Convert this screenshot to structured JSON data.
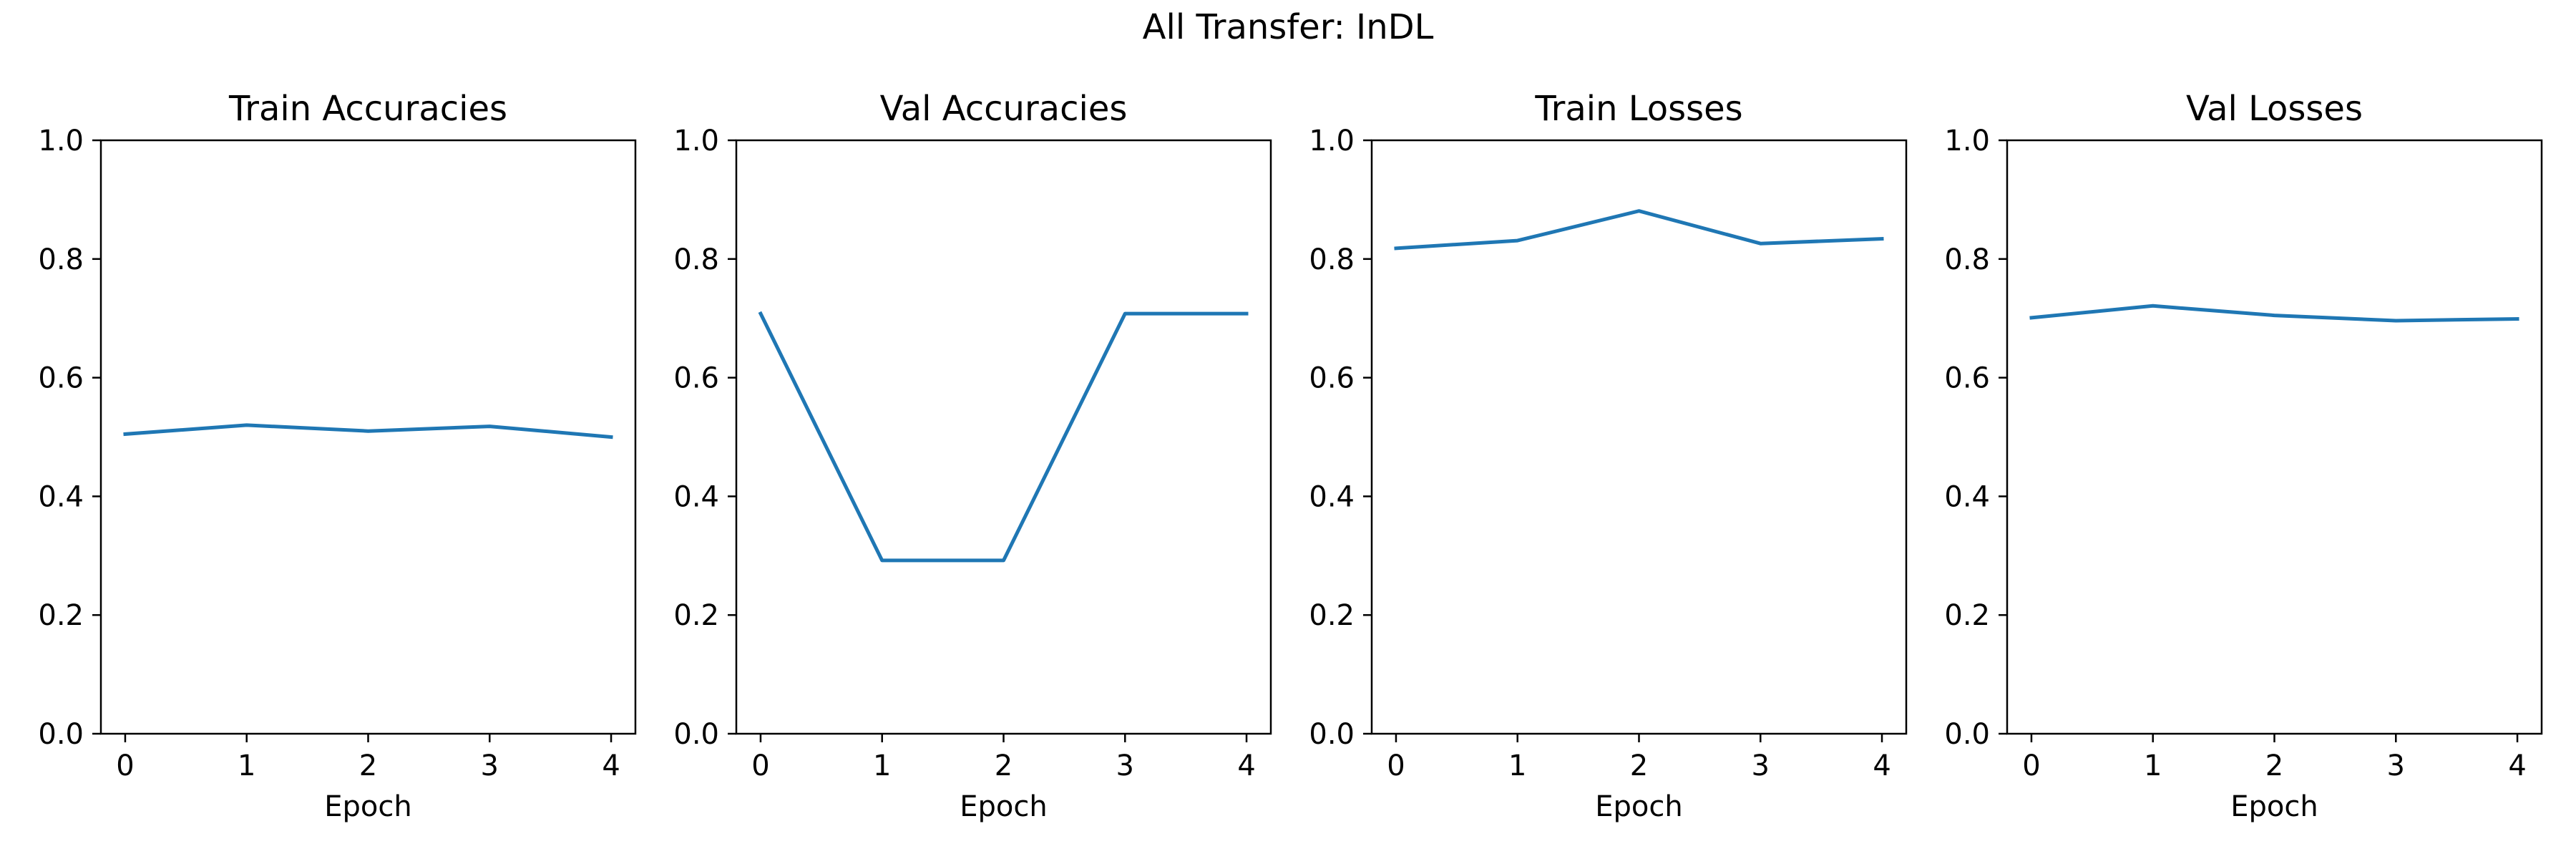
{
  "figure": {
    "suptitle": "All Transfer: InDL"
  },
  "style": {
    "line_color": "#1f77b4",
    "axis_color": "#000000",
    "background": "#ffffff"
  },
  "chart_data": [
    {
      "type": "line",
      "title": "Train Accuracies",
      "xlabel": "Epoch",
      "ylabel": "",
      "x": [
        0,
        1,
        2,
        3,
        4
      ],
      "series": [
        {
          "values": [
            0.505,
            0.52,
            0.51,
            0.518,
            0.5
          ]
        }
      ],
      "xlim": [
        -0.2,
        4.2
      ],
      "ylim": [
        0.0,
        1.0
      ],
      "xticks": [
        "0",
        "1",
        "2",
        "3",
        "4"
      ],
      "yticks": [
        "0.0",
        "0.2",
        "0.4",
        "0.6",
        "0.8",
        "1.0"
      ],
      "grid": false,
      "legend": "none"
    },
    {
      "type": "line",
      "title": "Val Accuracies",
      "xlabel": "Epoch",
      "ylabel": "",
      "x": [
        0,
        1,
        2,
        3,
        4
      ],
      "series": [
        {
          "values": [
            0.708,
            0.292,
            0.292,
            0.708,
            0.708
          ]
        }
      ],
      "xlim": [
        -0.2,
        4.2
      ],
      "ylim": [
        0.0,
        1.0
      ],
      "xticks": [
        "0",
        "1",
        "2",
        "3",
        "4"
      ],
      "yticks": [
        "0.0",
        "0.2",
        "0.4",
        "0.6",
        "0.8",
        "1.0"
      ],
      "grid": false,
      "legend": "none"
    },
    {
      "type": "line",
      "title": "Train Losses",
      "xlabel": "Epoch",
      "ylabel": "",
      "x": [
        0,
        1,
        2,
        3,
        4
      ],
      "series": [
        {
          "values": [
            0.818,
            0.831,
            0.881,
            0.826,
            0.834
          ]
        }
      ],
      "xlim": [
        -0.2,
        4.2
      ],
      "ylim": [
        0.0,
        1.0
      ],
      "xticks": [
        "0",
        "1",
        "2",
        "3",
        "4"
      ],
      "yticks": [
        "0.0",
        "0.2",
        "0.4",
        "0.6",
        "0.8",
        "1.0"
      ],
      "grid": false,
      "legend": "none"
    },
    {
      "type": "line",
      "title": "Val Losses",
      "xlabel": "Epoch",
      "ylabel": "",
      "x": [
        0,
        1,
        2,
        3,
        4
      ],
      "series": [
        {
          "values": [
            0.701,
            0.721,
            0.705,
            0.696,
            0.699
          ]
        }
      ],
      "xlim": [
        -0.2,
        4.2
      ],
      "ylim": [
        0.0,
        1.0
      ],
      "xticks": [
        "0",
        "1",
        "2",
        "3",
        "4"
      ],
      "yticks": [
        "0.0",
        "0.2",
        "0.4",
        "0.6",
        "0.8",
        "1.0"
      ],
      "grid": false,
      "legend": "none"
    }
  ]
}
